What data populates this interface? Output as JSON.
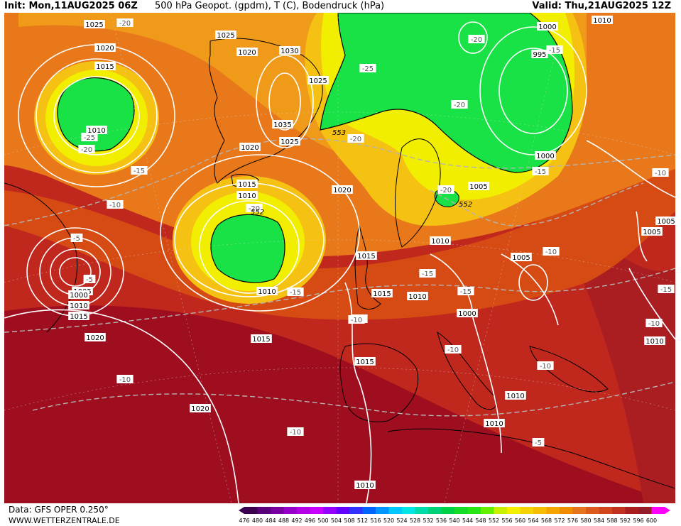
{
  "header": {
    "init": "Init: Mon,11AUG2025 06Z",
    "title": "500 hPa Geopot. (gpdm), T (C), Bodendruck (hPa)",
    "valid": "Valid: Thu,21AUG2025 12Z"
  },
  "footer": {
    "data": "Data: GFS OPER 0.250°",
    "site": "WWW.WETTERZENTRALE.DE"
  },
  "pressure_labels": [
    "1025",
    "1020",
    "1015",
    "1010",
    "1005",
    "1000",
    "995",
    "1030",
    "1035"
  ],
  "isobar_labels": [
    {
      "t": "1025"
    },
    {
      "t": "1020"
    },
    {
      "t": "1015"
    },
    {
      "t": "1010"
    },
    {
      "t": "1005"
    },
    {
      "t": "1000"
    },
    {
      "t": "1010"
    },
    {
      "t": "1015"
    },
    {
      "t": "1020"
    },
    {
      "t": "1025"
    },
    {
      "t": "1020"
    },
    {
      "t": "1030"
    },
    {
      "t": "1025"
    },
    {
      "t": "1035"
    },
    {
      "t": "1025"
    },
    {
      "t": "1020"
    },
    {
      "t": "1015"
    },
    {
      "t": "1010"
    },
    {
      "t": "1020"
    },
    {
      "t": "1010"
    },
    {
      "t": "1015"
    },
    {
      "t": "1015"
    },
    {
      "t": "1015"
    },
    {
      "t": "1010"
    },
    {
      "t": "1005"
    },
    {
      "t": "1010"
    },
    {
      "t": "1000"
    },
    {
      "t": "995"
    },
    {
      "t": "1000"
    },
    {
      "t": "1010"
    },
    {
      "t": "1005"
    },
    {
      "t": "1005"
    },
    {
      "t": "1005"
    },
    {
      "t": "1010"
    },
    {
      "t": "1010"
    },
    {
      "t": "1010"
    },
    {
      "t": "1015"
    },
    {
      "t": "1020"
    },
    {
      "t": "1010"
    },
    {
      "t": "1005"
    },
    {
      "t": "1000"
    },
    {
      "t": "1010"
    }
  ],
  "temp_labels": [
    {
      "t": "-20"
    },
    {
      "t": "-25"
    },
    {
      "t": "-20"
    },
    {
      "t": "-15"
    },
    {
      "t": "-10"
    },
    {
      "t": "-5"
    },
    {
      "t": "-20"
    },
    {
      "t": "-15"
    },
    {
      "t": "-25"
    },
    {
      "t": "-20"
    },
    {
      "t": "-20"
    },
    {
      "t": "-20"
    },
    {
      "t": "-15"
    },
    {
      "t": "-15"
    },
    {
      "t": "-10"
    },
    {
      "t": "-10"
    },
    {
      "t": "-15"
    },
    {
      "t": "-15"
    },
    {
      "t": "-10"
    },
    {
      "t": "-10"
    },
    {
      "t": "-10"
    },
    {
      "t": "-10"
    },
    {
      "t": "-5"
    },
    {
      "t": "-10"
    },
    {
      "t": "-5"
    },
    {
      "t": "-20"
    },
    {
      "t": "-10"
    },
    {
      "t": "-15"
    },
    {
      "t": "-10"
    }
  ],
  "height_labels": [
    "553",
    "552",
    "552"
  ],
  "colors": {
    "deep_red": "#9e0e1e",
    "red": "#c0281e",
    "red_orange": "#d64b14",
    "orange": "#e8781a",
    "light_orange": "#f09a1a",
    "gold": "#f5c213",
    "yellow": "#f2ee00",
    "green": "#18e245",
    "border": "#000000",
    "isobar": "#ffffff",
    "isotherm": "#b4b4b4"
  },
  "scale": {
    "values": [
      "476",
      "480",
      "484",
      "488",
      "492",
      "496",
      "500",
      "504",
      "508",
      "512",
      "516",
      "520",
      "524",
      "528",
      "532",
      "536",
      "540",
      "544",
      "548",
      "552",
      "556",
      "560",
      "564",
      "568",
      "572",
      "576",
      "580",
      "584",
      "588",
      "592",
      "596",
      "600"
    ],
    "colors": [
      "#3c0050",
      "#5a0078",
      "#7800a0",
      "#9600c8",
      "#b400e6",
      "#c800ff",
      "#9600ff",
      "#6400ff",
      "#3232ff",
      "#0064ff",
      "#0096ff",
      "#00c8ff",
      "#00e6e6",
      "#00dcaa",
      "#00d278",
      "#00d246",
      "#14dc28",
      "#28e614",
      "#64f000",
      "#c8f000",
      "#f5f000",
      "#f5d200",
      "#f5be00",
      "#f5a500",
      "#f08c00",
      "#e6731e",
      "#dc5a1e",
      "#d2461e",
      "#c0321e",
      "#aa1e1e",
      "#961e28",
      "#ff00ff"
    ]
  }
}
